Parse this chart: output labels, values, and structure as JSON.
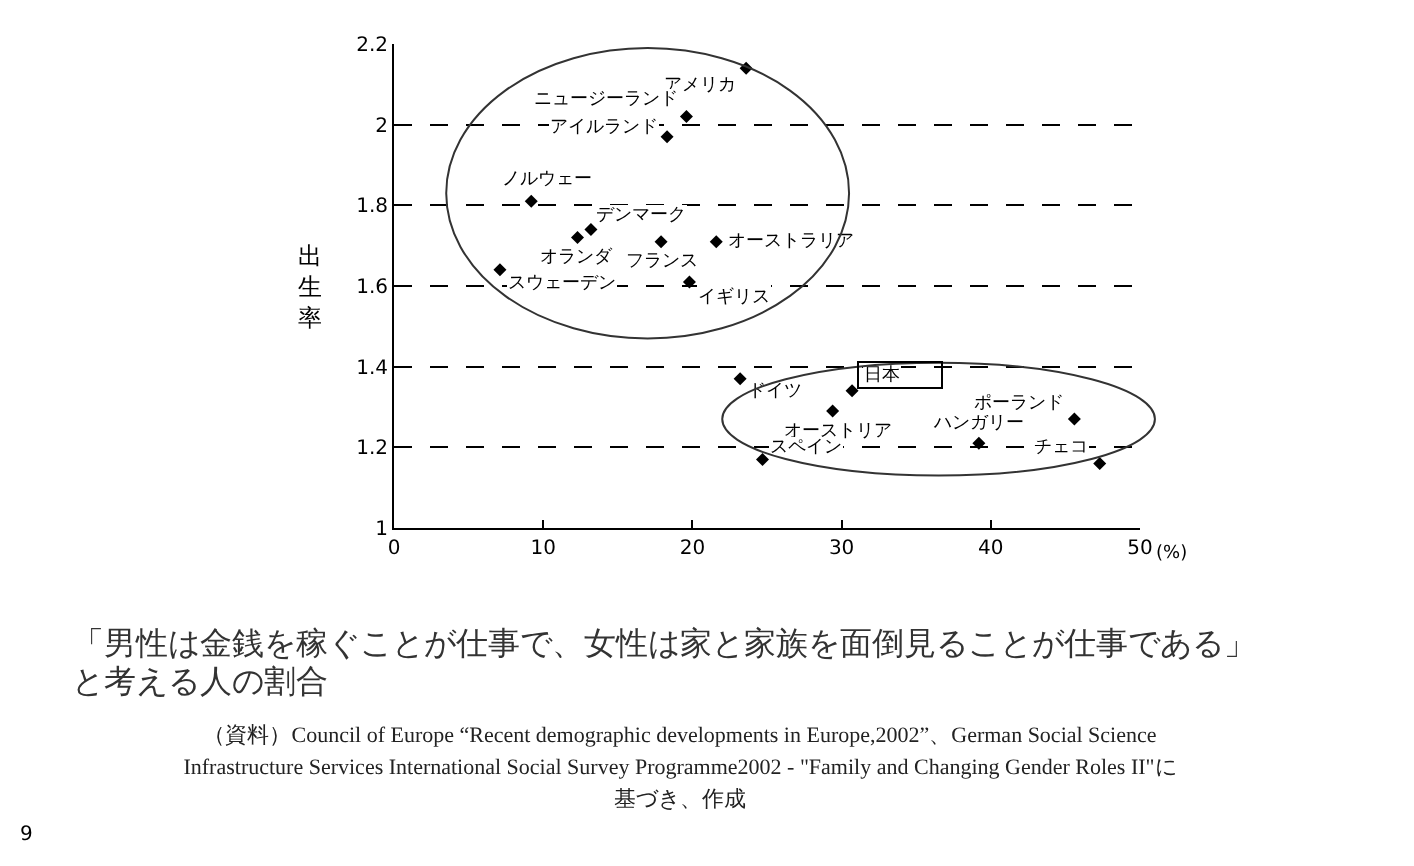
{
  "chart_data": {
    "type": "scatter",
    "title": "「男性は金銭を稼ぐことが仕事で、女性は家と家族を面倒見ることが仕事である」と考える人の割合",
    "ylabel": "出生率",
    "xlabel": "(%)",
    "series": [
      {
        "color": "#000000",
        "x": [
          23.6,
          19.6,
          18.3,
          9.2,
          13.2,
          12.3,
          7.1,
          17.9,
          21.6,
          19.8,
          23.2,
          30.7,
          29.4,
          39.2,
          45.6,
          47.3,
          24.7
        ],
        "values": [
          2.14,
          2.02,
          1.97,
          1.81,
          1.74,
          1.72,
          1.64,
          1.71,
          1.71,
          1.61,
          1.37,
          1.34,
          1.29,
          1.21,
          1.27,
          1.16,
          1.17
        ]
      }
    ],
    "annotations": [
      {
        "text": "アメリカ",
        "x": 23.6,
        "y": 2.14
      },
      {
        "text": "ニュージーランド",
        "x": 19.6,
        "y": 2.02
      },
      {
        "text": "アイルランド",
        "x": 18.3,
        "y": 1.97
      },
      {
        "text": "ノルウェー",
        "x": 9.2,
        "y": 1.81
      },
      {
        "text": "デンマーク",
        "x": 13.2,
        "y": 1.74
      },
      {
        "text": "オランダ",
        "x": 12.3,
        "y": 1.72
      },
      {
        "text": "スウェーデン",
        "x": 7.1,
        "y": 1.64
      },
      {
        "text": "フランス",
        "x": 17.9,
        "y": 1.71
      },
      {
        "text": "オーストラリア",
        "x": 21.6,
        "y": 1.71
      },
      {
        "text": "イギリス",
        "x": 19.8,
        "y": 1.61
      },
      {
        "text": "ドイツ",
        "x": 23.2,
        "y": 1.37
      },
      {
        "text": "日本",
        "x": 30.7,
        "y": 1.34
      },
      {
        "text": "オーストリア",
        "x": 29.4,
        "y": 1.29
      },
      {
        "text": "ハンガリー",
        "x": 39.2,
        "y": 1.21
      },
      {
        "text": "ポーランド",
        "x": 45.6,
        "y": 1.27
      },
      {
        "text": "チェコ",
        "x": 47.3,
        "y": 1.16
      },
      {
        "text": "スペイン",
        "x": 24.7,
        "y": 1.17
      },
      "（資料）Council of Europe “Recent demographic developments in Europe,2002”、German Social Science Infrastructure Services  International Social Survey Programme2002 - \"Family and Changing Gender Roles II\"に基づき、作成",
      "9"
    ],
    "xlim": [
      0,
      50
    ],
    "xticks": [
      0,
      10,
      20,
      30,
      40,
      50
    ],
    "ylim": [
      1,
      2.2
    ],
    "yticks": [
      1,
      1.2,
      1.4,
      1.6,
      1.8,
      2,
      2.2
    ],
    "grid": "y",
    "marker": "diamond"
  }
}
